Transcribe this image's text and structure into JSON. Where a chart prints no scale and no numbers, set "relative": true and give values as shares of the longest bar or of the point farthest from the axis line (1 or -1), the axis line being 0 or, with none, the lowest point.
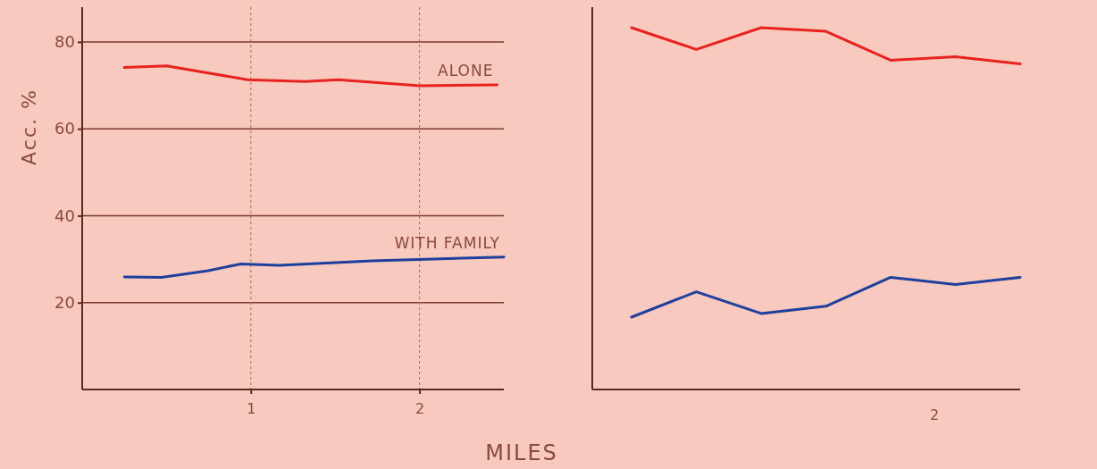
{
  "chart_data": [
    {
      "type": "line",
      "ylabel": "Acc. %",
      "xlabel": "MILES",
      "xlim": [
        0,
        2.5
      ],
      "ylim": [
        0,
        88
      ],
      "xticks": [
        1,
        2
      ],
      "yticks": [
        20,
        40,
        60,
        80
      ],
      "grid": true,
      "series": [
        {
          "name": "ALONE",
          "color": "#e8231f",
          "x": [
            0.25,
            0.5,
            0.98,
            1.32,
            1.52,
            2.0,
            2.46
          ],
          "values": [
            74.1,
            74.5,
            71.3,
            70.9,
            71.3,
            69.9,
            70.1
          ]
        },
        {
          "name": "WITH FAMILY",
          "color": "#1f3f9c",
          "x": [
            0.25,
            0.47,
            0.74,
            0.94,
            1.17,
            1.72,
            2.5
          ],
          "values": [
            25.9,
            25.8,
            27.3,
            28.9,
            28.6,
            29.6,
            30.5
          ]
        }
      ]
    },
    {
      "type": "line",
      "categories": [
        null,
        null,
        null,
        null,
        null,
        null,
        null
      ],
      "relative": true,
      "annotations": [
        "2"
      ],
      "series": [
        {
          "color": "#e8231f",
          "values": [
            1.0,
            0.94,
            1.0,
            0.99,
            0.91,
            0.92,
            0.9
          ]
        },
        {
          "color": "#1f3f9c",
          "values": [
            0.2,
            0.27,
            0.21,
            0.23,
            0.31,
            0.29,
            0.31
          ]
        }
      ]
    }
  ]
}
